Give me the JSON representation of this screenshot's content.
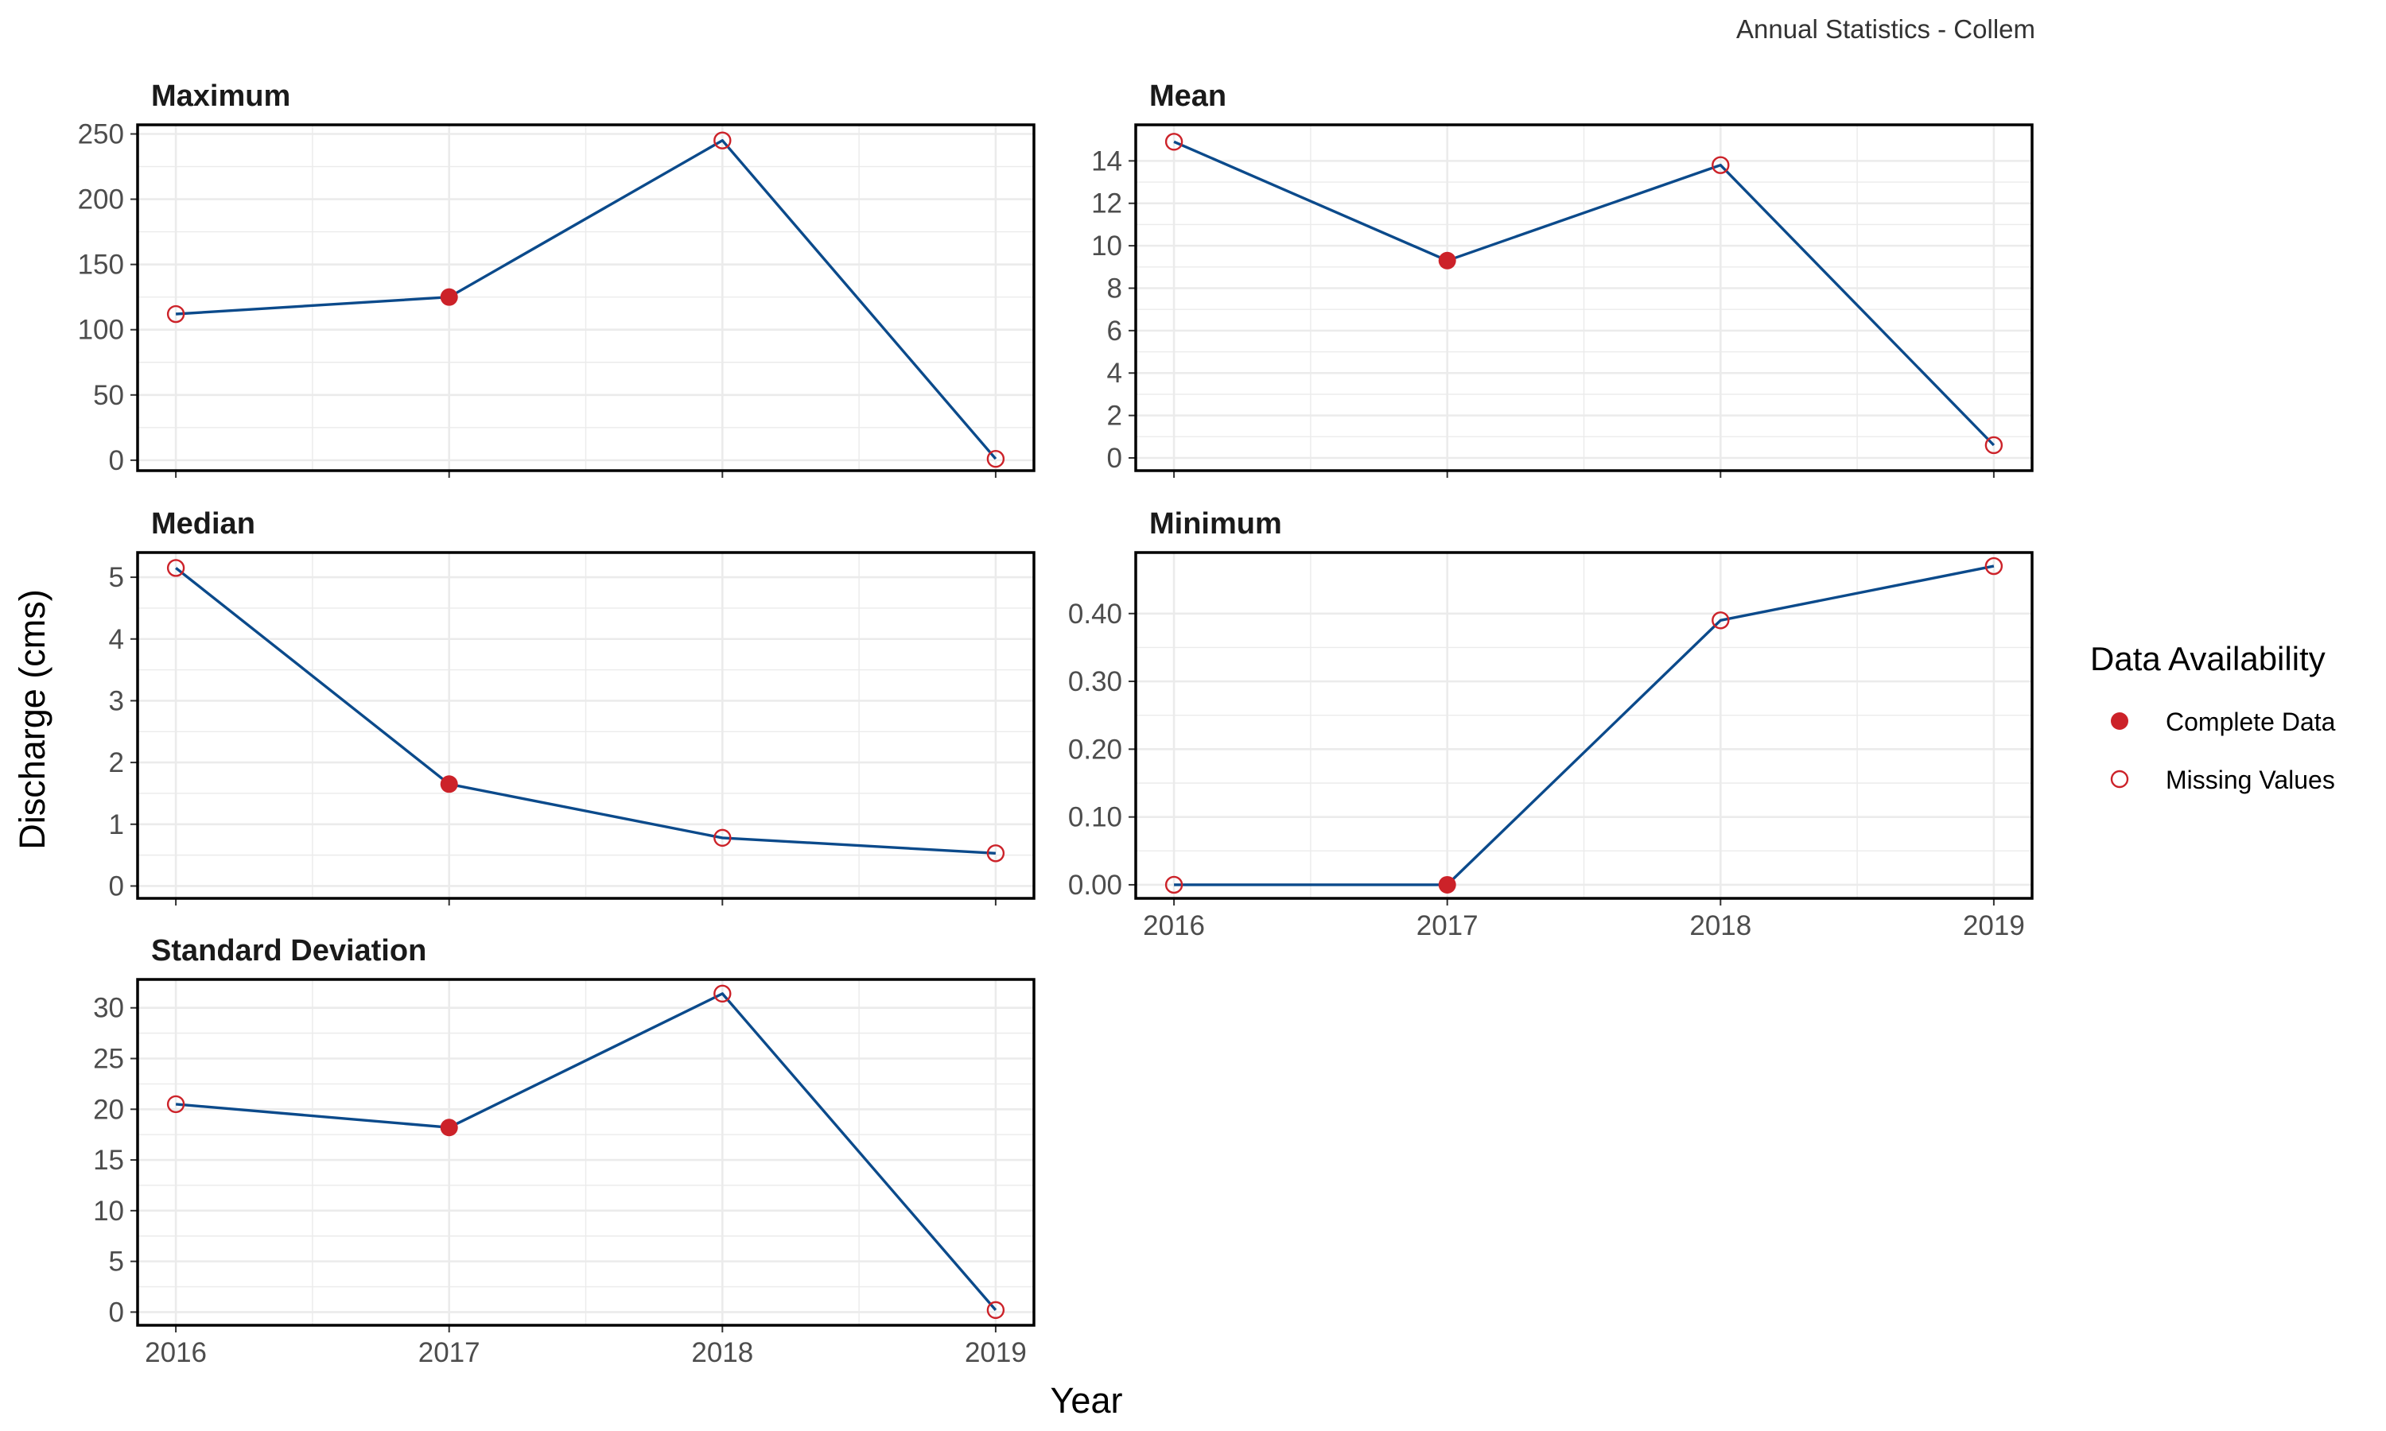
{
  "caption": "Annual Statistics - Collem",
  "x_axis_title": "Year",
  "y_axis_title": "Discharge (cms)",
  "legend": {
    "title": "Data Availability",
    "items": [
      {
        "label": "Complete Data",
        "filled": true
      },
      {
        "label": "Missing Values",
        "filled": false
      }
    ]
  },
  "colors": {
    "line": "#0b4a8b",
    "point": "#cc2229",
    "grid": "#ebebeb",
    "border": "#000000"
  },
  "chart_data": [
    {
      "type": "line",
      "title": "Maximum",
      "x": [
        2016,
        2017,
        2018,
        2019
      ],
      "values": [
        112,
        125,
        245,
        1
      ],
      "complete": [
        false,
        true,
        false,
        false
      ],
      "ylim": [
        -8,
        257
      ],
      "yticks": [
        0,
        50,
        100,
        150,
        200,
        250
      ],
      "ytick_labels": [
        "0",
        "50",
        "100",
        "150",
        "200",
        "250"
      ],
      "show_xticks": false
    },
    {
      "type": "line",
      "title": "Mean",
      "x": [
        2016,
        2017,
        2018,
        2019
      ],
      "values": [
        14.9,
        9.3,
        13.8,
        0.6
      ],
      "complete": [
        false,
        true,
        false,
        false
      ],
      "ylim": [
        -0.6,
        15.7
      ],
      "yticks": [
        0,
        2,
        4,
        6,
        8,
        10,
        12,
        14
      ],
      "ytick_labels": [
        "0",
        "2",
        "4",
        "6",
        "8",
        "10",
        "12",
        "14"
      ],
      "show_xticks": false
    },
    {
      "type": "line",
      "title": "Median",
      "x": [
        2016,
        2017,
        2018,
        2019
      ],
      "values": [
        5.15,
        1.65,
        0.78,
        0.53
      ],
      "complete": [
        false,
        true,
        false,
        false
      ],
      "ylim": [
        -0.2,
        5.4
      ],
      "yticks": [
        0,
        1,
        2,
        3,
        4,
        5
      ],
      "ytick_labels": [
        "0",
        "1",
        "2",
        "3",
        "4",
        "5"
      ],
      "show_xticks": false
    },
    {
      "type": "line",
      "title": "Minimum",
      "x": [
        2016,
        2017,
        2018,
        2019
      ],
      "values": [
        0.0,
        0.0,
        0.39,
        0.47
      ],
      "complete": [
        false,
        true,
        false,
        false
      ],
      "ylim": [
        -0.02,
        0.49
      ],
      "yticks": [
        0,
        0.1,
        0.2,
        0.3,
        0.4
      ],
      "ytick_labels": [
        "0.00",
        "0.10",
        "0.20",
        "0.30",
        "0.40"
      ],
      "show_xticks": true
    },
    {
      "type": "line",
      "title": "Standard Deviation",
      "x": [
        2016,
        2017,
        2018,
        2019
      ],
      "values": [
        20.5,
        18.2,
        31.4,
        0.2
      ],
      "complete": [
        false,
        true,
        false,
        false
      ],
      "ylim": [
        -1.3,
        32.8
      ],
      "yticks": [
        0,
        5,
        10,
        15,
        20,
        25,
        30
      ],
      "ytick_labels": [
        "0",
        "5",
        "10",
        "15",
        "20",
        "25",
        "30"
      ],
      "show_xticks": true
    }
  ],
  "x_axis": {
    "range": [
      2015.86,
      2019.14
    ],
    "ticks": [
      2016,
      2017,
      2018,
      2019
    ],
    "tick_labels": [
      "2016",
      "2017",
      "2018",
      "2019"
    ]
  }
}
